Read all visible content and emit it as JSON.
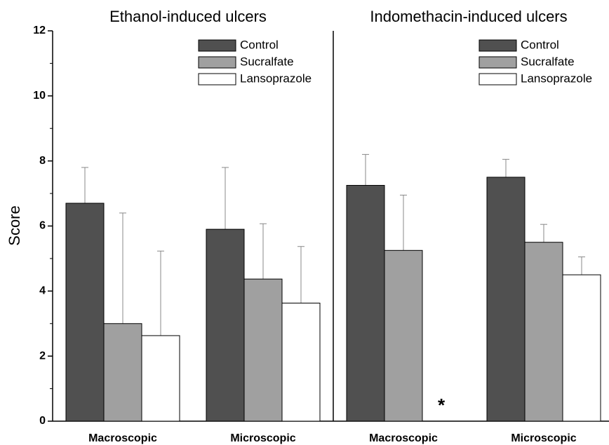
{
  "chart_data": [
    {
      "type": "bar",
      "title": "Ethanol-induced ulcers",
      "y_label": "Score",
      "categories": [
        "Macroscopic",
        "Microscopic"
      ],
      "series": [
        {
          "name": "Control",
          "color": "#505050",
          "values": [
            6.7,
            5.9
          ],
          "errors": [
            1.1,
            1.9
          ]
        },
        {
          "name": "Sucralfate",
          "color": "#a0a0a0",
          "values": [
            3.0,
            4.37
          ],
          "errors": [
            3.4,
            1.7
          ]
        },
        {
          "name": "Lansoprazole",
          "color": "#ffffff",
          "values": [
            2.63,
            3.63
          ],
          "errors": [
            2.6,
            1.74
          ]
        }
      ],
      "ylim": [
        0,
        12
      ],
      "yticks": [
        0,
        2,
        4,
        6,
        8,
        10,
        12
      ],
      "minor_yticks": [
        1,
        3,
        5,
        7,
        9,
        11
      ],
      "legend": "upper right"
    },
    {
      "type": "bar",
      "title": "Indomethacin-induced ulcers",
      "categories": [
        "Macroscopic",
        "Microscopic"
      ],
      "series": [
        {
          "name": "Control",
          "color": "#505050",
          "values": [
            7.25,
            7.5
          ],
          "errors": [
            0.95,
            0.55
          ]
        },
        {
          "name": "Sucralfate",
          "color": "#a0a0a0",
          "values": [
            5.25,
            5.5
          ],
          "errors": [
            1.7,
            0.55
          ]
        },
        {
          "name": "Lansoprazole",
          "color": "#ffffff",
          "values": [
            0,
            4.5
          ],
          "errors": [
            0,
            0.55
          ]
        }
      ],
      "annotation": "*",
      "ylim": [
        0,
        12
      ],
      "legend": "upper right"
    }
  ]
}
